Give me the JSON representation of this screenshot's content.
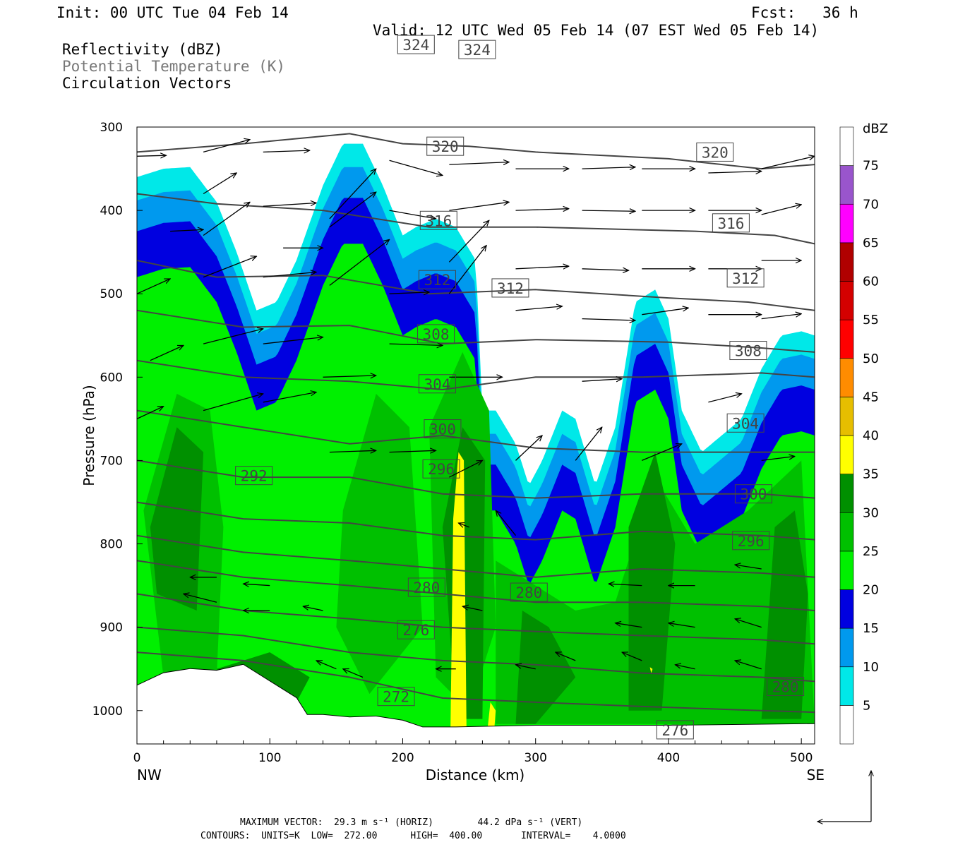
{
  "header": {
    "init": "Init: 00 UTC Tue 04 Feb 14",
    "fcst": "Fcst:   36 h",
    "valid": "Valid: 12 UTC Wed 05 Feb 14 (07 EST Wed 05 Feb 14)",
    "fields": [
      "Reflectivity (dBZ)",
      "Potential Temperature (K)",
      "Circulation Vectors"
    ]
  },
  "footer": {
    "line1": "MAXIMUM VECTOR:  29.3 m s⁻¹ (HORIZ)        44.2 dPa s⁻¹ (VERT)",
    "line2": "CONTOURS:  UNITS=K  LOW=  272.00      HIGH=  400.00       INTERVAL=    4.0000"
  },
  "chart_data": {
    "type": "heatmap",
    "xlabel": "Distance (km)",
    "ylabel": "Pressure (hPa)",
    "xlim": [
      0,
      510
    ],
    "ylim": [
      1040,
      300
    ],
    "x_ticks": [
      0,
      100,
      200,
      300,
      400,
      500
    ],
    "y_ticks": [
      300,
      400,
      500,
      600,
      700,
      800,
      900,
      1000
    ],
    "x_end_labels": {
      "left": "NW",
      "right": "SE"
    },
    "colorbar": {
      "title": "dBZ",
      "levels": [
        5,
        10,
        15,
        20,
        25,
        30,
        35,
        40,
        45,
        50,
        55,
        60,
        65,
        70,
        75
      ],
      "colors": [
        "#ffffff",
        "#00e8e8",
        "#0099ee",
        "#0000e0",
        "#00f000",
        "#00c000",
        "#009000",
        "#ffff00",
        "#e6be00",
        "#ff8c00",
        "#ff0000",
        "#d40000",
        "#b00000",
        "#ff00ff",
        "#9955cc",
        "#ffffff"
      ]
    },
    "reflectivity_top_hPa": [
      [
        0,
        360
      ],
      [
        20,
        350
      ],
      [
        40,
        348
      ],
      [
        60,
        390
      ],
      [
        75,
        450
      ],
      [
        90,
        520
      ],
      [
        105,
        510
      ],
      [
        120,
        460
      ],
      [
        140,
        370
      ],
      [
        155,
        320
      ],
      [
        170,
        320
      ],
      [
        185,
        370
      ],
      [
        200,
        430
      ],
      [
        210,
        420
      ],
      [
        225,
        410
      ],
      [
        240,
        420
      ],
      [
        255,
        460
      ],
      [
        260,
        640
      ],
      [
        270,
        640
      ],
      [
        285,
        680
      ],
      [
        295,
        730
      ],
      [
        305,
        700
      ],
      [
        320,
        640
      ],
      [
        330,
        650
      ],
      [
        345,
        730
      ],
      [
        360,
        660
      ],
      [
        375,
        510
      ],
      [
        390,
        495
      ],
      [
        400,
        530
      ],
      [
        410,
        640
      ],
      [
        425,
        690
      ],
      [
        440,
        670
      ],
      [
        455,
        650
      ],
      [
        470,
        590
      ],
      [
        485,
        550
      ],
      [
        500,
        545
      ],
      [
        510,
        550
      ]
    ],
    "bands": [
      {
        "dbz": 10,
        "offset_hPa": 28
      },
      {
        "dbz": 15,
        "offset_hPa": 65
      },
      {
        "dbz": 20,
        "offset_hPa": 120
      }
    ],
    "theta_contours": [
      {
        "theta": 272,
        "label_pos": [
          195,
          983
        ]
      },
      {
        "theta": 276,
        "label_pos": [
          210,
          903
        ]
      },
      {
        "theta": 280,
        "label_pos": [
          218,
          852
        ]
      },
      {
        "theta": 280,
        "label_pos": [
          295,
          858
        ]
      },
      {
        "theta": 280,
        "label_pos": [
          488,
          971
        ]
      },
      {
        "theta": 276,
        "label_pos": [
          405,
          1023
        ]
      },
      {
        "theta": 292,
        "label_pos": [
          88,
          718
        ]
      },
      {
        "theta": 296,
        "label_pos": [
          229,
          710
        ]
      },
      {
        "theta": 300,
        "label_pos": [
          230,
          662
        ]
      },
      {
        "theta": 304,
        "label_pos": [
          226,
          608
        ]
      },
      {
        "theta": 308,
        "label_pos": [
          225,
          548
        ]
      },
      {
        "theta": 312,
        "label_pos": [
          226,
          483
        ]
      },
      {
        "theta": 312,
        "label_pos": [
          281,
          493
        ]
      },
      {
        "theta": 316,
        "label_pos": [
          227,
          412
        ]
      },
      {
        "theta": 320,
        "label_pos": [
          232,
          323
        ]
      },
      {
        "theta": 324,
        "label_pos": [
          210,
          201
        ]
      },
      {
        "theta": 324,
        "label_pos": [
          256,
          207
        ]
      },
      {
        "theta": 320,
        "label_pos": [
          435,
          330
        ]
      },
      {
        "theta": 316,
        "label_pos": [
          447,
          415
        ]
      },
      {
        "theta": 312,
        "label_pos": [
          458,
          481
        ]
      },
      {
        "theta": 308,
        "label_pos": [
          460,
          568
        ]
      },
      {
        "theta": 304,
        "label_pos": [
          458,
          655
        ]
      },
      {
        "theta": 300,
        "label_pos": [
          464,
          740
        ]
      },
      {
        "theta": 296,
        "label_pos": [
          462,
          796
        ]
      }
    ]
  }
}
